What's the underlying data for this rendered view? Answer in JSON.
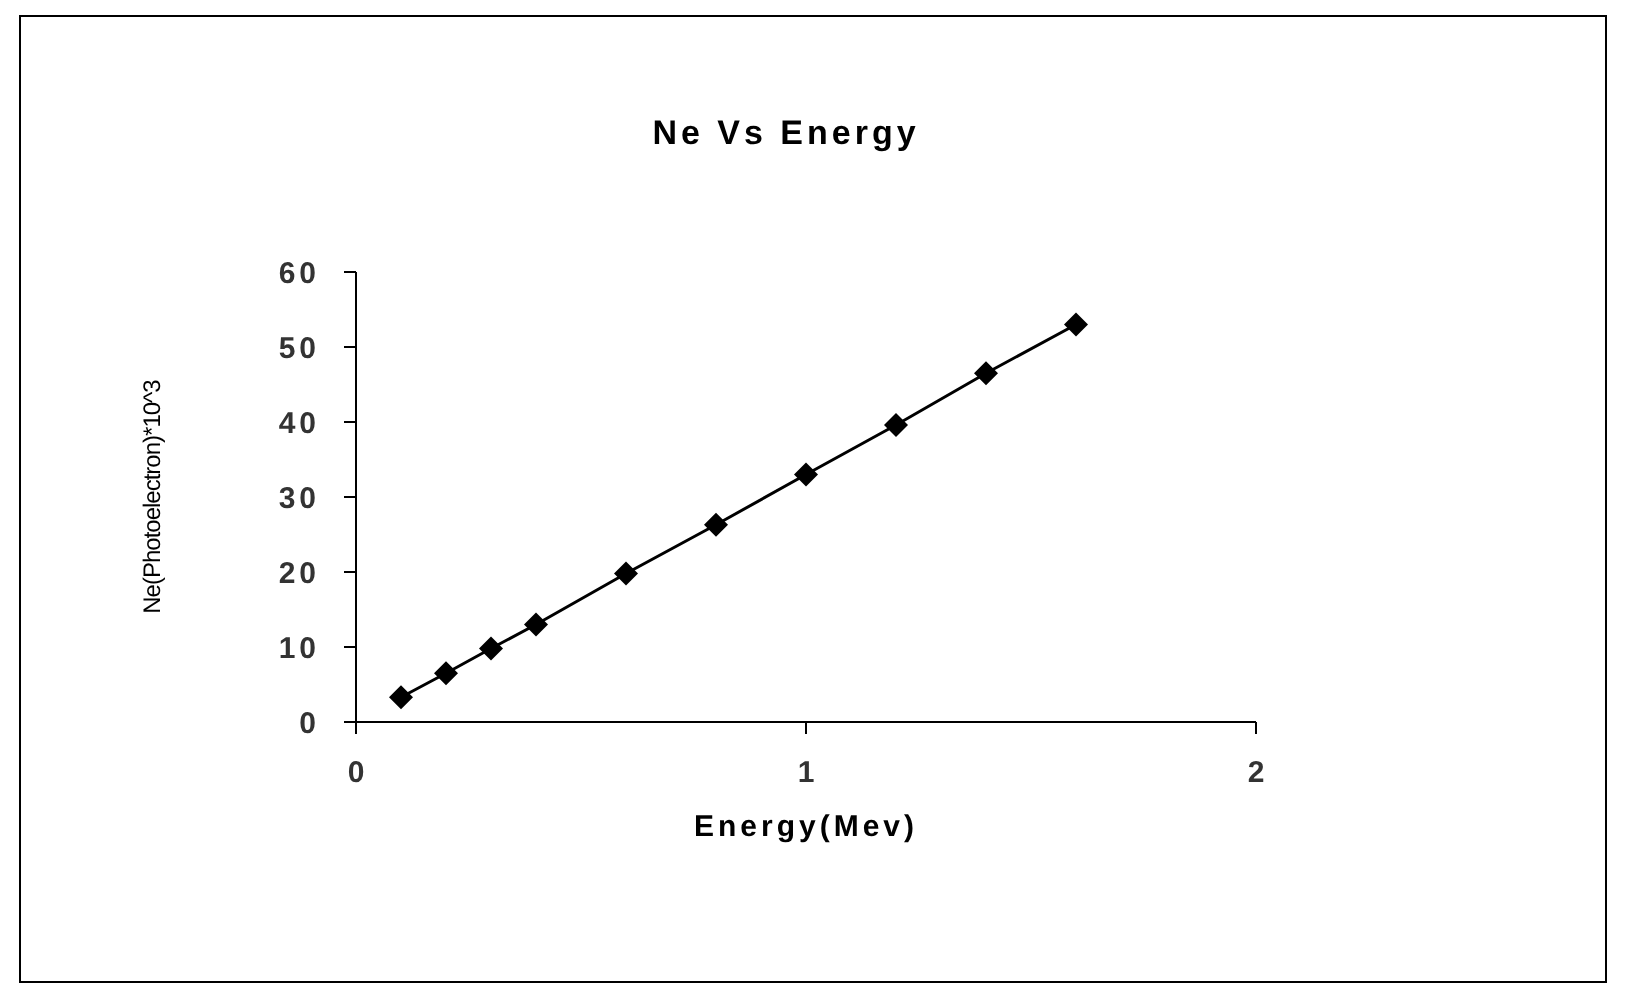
{
  "chart_data": {
    "type": "line",
    "title": "Ne Vs Energy",
    "xlabel": "Energy(Mev)",
    "ylabel": "Ne(Photoelectron)*10^3",
    "x": [
      0.1,
      0.2,
      0.3,
      0.4,
      0.6,
      0.8,
      1.0,
      1.2,
      1.4,
      1.6
    ],
    "series": [
      {
        "color": "#000000",
        "values": [
          3.3,
          6.5,
          9.8,
          13,
          19.8,
          26.3,
          33,
          39.6,
          46.5,
          53
        ]
      }
    ],
    "xlim": [
      0,
      2
    ],
    "xticks": [
      0,
      1,
      2
    ],
    "ylim": [
      0,
      60
    ],
    "yticks": [
      0,
      10,
      20,
      30,
      40,
      50,
      60
    ],
    "grid": false,
    "marker": "diamond",
    "line_style": "solid"
  }
}
